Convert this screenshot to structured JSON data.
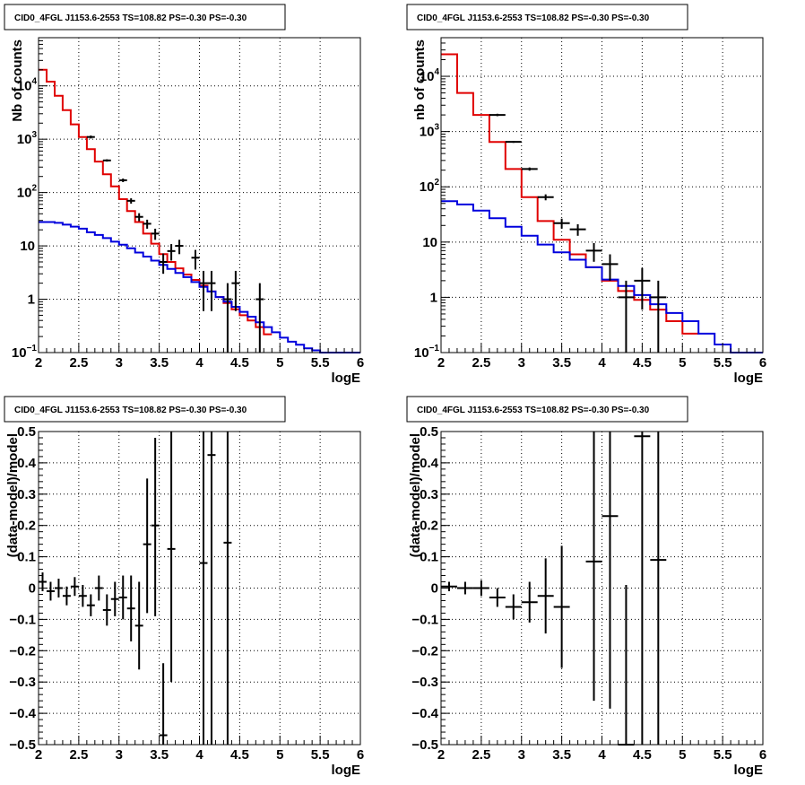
{
  "chart_data": [
    {
      "id": "p1",
      "type": "step-histogram",
      "title": "CID0_4FGL J1153.6-2553 TS=108.82 PS=-0.30 PS=-0.30",
      "xlabel": "logE",
      "ylabel": "Nb of counts",
      "xlim": [
        2,
        6
      ],
      "ylim": [
        0.1,
        80000
      ],
      "yscale": "log",
      "grid": true,
      "xticks": [
        "2",
        "2.5",
        "3",
        "3.5",
        "4",
        "4.5",
        "5",
        "5.5",
        "6"
      ],
      "yticks": [
        {
          "mant": "10",
          "exp": "−1",
          "v": 0.1
        },
        {
          "mant": "1",
          "exp": "",
          "v": 1
        },
        {
          "mant": "10",
          "exp": "",
          "v": 10
        },
        {
          "mant": "10",
          "exp": "2",
          "v": 100
        },
        {
          "mant": "10",
          "exp": "3",
          "v": 1000
        },
        {
          "mant": "10",
          "exp": "4",
          "v": 10000
        }
      ],
      "bin_edges": [
        2.0,
        2.1,
        2.2,
        2.3,
        2.4,
        2.5,
        2.6,
        2.7,
        2.8,
        2.9,
        3.0,
        3.1,
        3.2,
        3.3,
        3.4,
        3.5,
        3.6,
        3.7,
        3.8,
        3.9,
        4.0,
        4.1,
        4.2,
        4.3,
        4.4,
        4.5,
        4.6,
        4.7,
        4.8,
        4.9,
        5.0,
        5.1,
        5.2,
        5.3,
        5.4,
        5.5,
        5.6,
        5.7,
        5.8,
        5.9,
        6.0
      ],
      "series": [
        {
          "name": "",
          "color": "#e00000",
          "values": [
            20000,
            12000,
            6500,
            3500,
            1900,
            1100,
            650,
            380,
            220,
            130,
            75,
            45,
            28,
            17,
            11,
            7,
            5,
            3.8,
            2.9,
            2.3,
            1.8,
            1.4,
            1.1,
            0.85,
            0.65,
            0.5,
            0.4,
            0.3,
            0.22
          ]
        },
        {
          "name": "",
          "color": "#0000dd",
          "values": [
            28,
            28,
            27,
            25,
            23,
            21,
            18,
            16,
            14,
            12,
            10.5,
            9,
            7.5,
            6.3,
            5.3,
            4.4,
            3.7,
            3.1,
            2.6,
            2.1,
            1.7,
            1.4,
            1.1,
            0.9,
            0.72,
            0.58,
            0.47,
            0.37,
            0.3,
            0.24,
            0.19,
            0.16,
            0.14,
            0.12,
            0.11,
            0.1,
            0.1,
            0.1,
            0.1,
            0.1
          ]
        }
      ],
      "points": [
        {
          "x": 2.65,
          "y": 1100,
          "ylo": 1030,
          "yhi": 1170
        },
        {
          "x": 2.85,
          "y": 400,
          "ylo": 380,
          "yhi": 420
        },
        {
          "x": 3.05,
          "y": 170,
          "ylo": 157,
          "yhi": 183
        },
        {
          "x": 3.15,
          "y": 70,
          "ylo": 62,
          "yhi": 78
        },
        {
          "x": 3.25,
          "y": 35,
          "ylo": 29,
          "yhi": 41
        },
        {
          "x": 3.35,
          "y": 26,
          "ylo": 21,
          "yhi": 31
        },
        {
          "x": 3.45,
          "y": 17,
          "ylo": 13,
          "yhi": 21
        },
        {
          "x": 3.55,
          "y": 5,
          "ylo": 3,
          "yhi": 7.2
        },
        {
          "x": 3.65,
          "y": 8,
          "ylo": 5.3,
          "yhi": 10.8
        },
        {
          "x": 3.75,
          "y": 10,
          "ylo": 7,
          "yhi": 13
        },
        {
          "x": 3.95,
          "y": 6,
          "ylo": 3.6,
          "yhi": 8.4
        },
        {
          "x": 4.05,
          "y": 2,
          "ylo": 0.6,
          "yhi": 3.4
        },
        {
          "x": 4.15,
          "y": 2,
          "ylo": 0.6,
          "yhi": 3.4
        },
        {
          "x": 4.35,
          "y": 1,
          "ylo": 0.1,
          "yhi": 2
        },
        {
          "x": 4.45,
          "y": 2,
          "ylo": 0.6,
          "yhi": 3.4
        },
        {
          "x": 4.75,
          "y": 1,
          "ylo": 0.1,
          "yhi": 2
        }
      ],
      "xerr": 0.05
    },
    {
      "id": "p2",
      "type": "step-histogram",
      "title": "CID0_4FGL J1153.6-2553 TS=108.82 PS=-0.30 PS=-0.30",
      "xlabel": "logE",
      "ylabel": "nb of counts",
      "xlim": [
        2,
        6
      ],
      "ylim": [
        0.1,
        50000
      ],
      "yscale": "log",
      "grid": true,
      "xticks": [
        "2",
        "2.5",
        "3",
        "3.5",
        "4",
        "4.5",
        "5",
        "5.5",
        "6"
      ],
      "yticks": [
        {
          "mant": "10",
          "exp": "−1",
          "v": 0.1
        },
        {
          "mant": "1",
          "exp": "",
          "v": 1
        },
        {
          "mant": "10",
          "exp": "",
          "v": 10
        },
        {
          "mant": "10",
          "exp": "2",
          "v": 100
        },
        {
          "mant": "10",
          "exp": "3",
          "v": 1000
        },
        {
          "mant": "10",
          "exp": "4",
          "v": 10000
        }
      ],
      "bin_edges": [
        2.0,
        2.2,
        2.4,
        2.6,
        2.8,
        3.0,
        3.2,
        3.4,
        3.6,
        3.8,
        4.0,
        4.2,
        4.4,
        4.6,
        4.8,
        5.0,
        5.2,
        5.4,
        5.6,
        5.8,
        6.0
      ],
      "series": [
        {
          "name": "",
          "color": "#e00000",
          "values": [
            25000,
            5000,
            2000,
            650,
            210,
            65,
            24,
            11,
            6,
            3.5,
            2,
            1.3,
            0.9,
            0.6,
            0.37,
            0.22
          ]
        },
        {
          "name": "",
          "color": "#0000dd",
          "values": [
            55,
            48,
            37,
            27,
            19,
            13,
            9,
            6.5,
            4.8,
            3.5,
            2.1,
            1.6,
            1.1,
            0.75,
            0.52,
            0.37,
            0.22,
            0.14,
            0.1,
            0.1
          ]
        }
      ],
      "points": [
        {
          "x": 2.7,
          "y": 2000,
          "ylo": 1900,
          "yhi": 2100
        },
        {
          "x": 2.9,
          "y": 650,
          "ylo": 625,
          "yhi": 675
        },
        {
          "x": 3.1,
          "y": 210,
          "ylo": 196,
          "yhi": 224
        },
        {
          "x": 3.3,
          "y": 65,
          "ylo": 57,
          "yhi": 73
        },
        {
          "x": 3.5,
          "y": 22,
          "ylo": 17.5,
          "yhi": 26.5
        },
        {
          "x": 3.7,
          "y": 17,
          "ylo": 13,
          "yhi": 21
        },
        {
          "x": 3.9,
          "y": 7,
          "ylo": 4.4,
          "yhi": 9.6
        },
        {
          "x": 4.1,
          "y": 4,
          "ylo": 2,
          "yhi": 6
        },
        {
          "x": 4.3,
          "y": 1,
          "ylo": 0.1,
          "yhi": 2
        },
        {
          "x": 4.5,
          "y": 2,
          "ylo": 0.6,
          "yhi": 3.4
        },
        {
          "x": 4.7,
          "y": 1,
          "ylo": 0.1,
          "yhi": 2
        }
      ],
      "xerr": 0.1
    },
    {
      "id": "p3",
      "type": "scatter-errorbars",
      "title": "CID0_4FGL J1153.6-2553 TS=108.82 PS=-0.30 PS=-0.30",
      "xlabel": "logE",
      "ylabel": "(data-model)/model",
      "xlim": [
        2,
        6
      ],
      "ylim": [
        -0.5,
        0.5
      ],
      "yscale": "linear",
      "grid": true,
      "xticks": [
        "2",
        "2.5",
        "3",
        "3.5",
        "4",
        "4.5",
        "5",
        "5.5",
        "6"
      ],
      "yticks": [
        "−0.5",
        "−0.4",
        "−0.3",
        "−0.2",
        "−0.1",
        "0",
        "0.1",
        "0.2",
        "0.3",
        "0.4",
        "0.5"
      ],
      "points": [
        {
          "x": 2.05,
          "y": 0.02,
          "ylo": -0.01,
          "yhi": 0.05
        },
        {
          "x": 2.15,
          "y": -0.01,
          "ylo": -0.04,
          "yhi": 0.02
        },
        {
          "x": 2.25,
          "y": 0.0,
          "ylo": -0.03,
          "yhi": 0.03
        },
        {
          "x": 2.35,
          "y": -0.025,
          "ylo": -0.055,
          "yhi": 0.005
        },
        {
          "x": 2.45,
          "y": 0.005,
          "ylo": -0.025,
          "yhi": 0.035
        },
        {
          "x": 2.55,
          "y": -0.025,
          "ylo": -0.06,
          "yhi": 0.01
        },
        {
          "x": 2.65,
          "y": -0.055,
          "ylo": -0.09,
          "yhi": -0.02
        },
        {
          "x": 2.75,
          "y": 0.0,
          "ylo": -0.04,
          "yhi": 0.04
        },
        {
          "x": 2.85,
          "y": -0.07,
          "ylo": -0.12,
          "yhi": -0.02
        },
        {
          "x": 2.95,
          "y": -0.035,
          "ylo": -0.09,
          "yhi": 0.02
        },
        {
          "x": 3.05,
          "y": -0.03,
          "ylo": -0.1,
          "yhi": 0.04
        },
        {
          "x": 3.15,
          "y": -0.065,
          "ylo": -0.17,
          "yhi": 0.04
        },
        {
          "x": 3.25,
          "y": -0.12,
          "ylo": -0.26,
          "yhi": 0.02
        },
        {
          "x": 3.35,
          "y": 0.14,
          "ylo": -0.08,
          "yhi": 0.35
        },
        {
          "x": 3.45,
          "y": 0.2,
          "ylo": -0.09,
          "yhi": 0.48
        },
        {
          "x": 3.55,
          "y": -0.47,
          "ylo": -0.5,
          "yhi": -0.24
        },
        {
          "x": 3.65,
          "y": 0.125,
          "ylo": -0.3,
          "yhi": 0.5
        },
        {
          "x": 4.05,
          "y": 0.08,
          "ylo": -0.5,
          "yhi": 0.5
        },
        {
          "x": 4.15,
          "y": 0.425,
          "ylo": -0.5,
          "yhi": 0.5
        },
        {
          "x": 4.35,
          "y": 0.145,
          "ylo": -0.5,
          "yhi": 0.5
        }
      ],
      "xerr": 0.05
    },
    {
      "id": "p4",
      "type": "scatter-errorbars",
      "title": "CID0_4FGL J1153.6-2553 TS=108.82 PS=-0.30 PS=-0.30",
      "xlabel": "logE",
      "ylabel": "(data-model)/model",
      "xlim": [
        2,
        6
      ],
      "ylim": [
        -0.5,
        0.5
      ],
      "yscale": "linear",
      "grid": true,
      "xticks": [
        "2",
        "2.5",
        "3",
        "3.5",
        "4",
        "4.5",
        "5",
        "5.5",
        "6"
      ],
      "yticks": [
        "−0.5",
        "−0.4",
        "−0.3",
        "−0.2",
        "−0.1",
        "0",
        "0.1",
        "0.2",
        "0.3",
        "0.4",
        "0.5"
      ],
      "points": [
        {
          "x": 2.1,
          "y": 0.005,
          "ylo": -0.01,
          "yhi": 0.02
        },
        {
          "x": 2.3,
          "y": 0.0,
          "ylo": -0.02,
          "yhi": 0.02
        },
        {
          "x": 2.5,
          "y": 0.0,
          "ylo": -0.025,
          "yhi": 0.025
        },
        {
          "x": 2.7,
          "y": -0.03,
          "ylo": -0.06,
          "yhi": 0.0
        },
        {
          "x": 2.9,
          "y": -0.06,
          "ylo": -0.1,
          "yhi": -0.02
        },
        {
          "x": 3.1,
          "y": -0.045,
          "ylo": -0.11,
          "yhi": 0.02
        },
        {
          "x": 3.3,
          "y": -0.025,
          "ylo": -0.145,
          "yhi": 0.095
        },
        {
          "x": 3.5,
          "y": -0.06,
          "ylo": -0.255,
          "yhi": 0.135
        },
        {
          "x": 3.9,
          "y": 0.085,
          "ylo": -0.36,
          "yhi": 0.5
        },
        {
          "x": 4.1,
          "y": 0.23,
          "ylo": -0.385,
          "yhi": 0.5
        },
        {
          "x": 4.3,
          "y": -0.5,
          "ylo": -0.5,
          "yhi": 0.01
        },
        {
          "x": 4.5,
          "y": 0.485,
          "ylo": -0.5,
          "yhi": 0.5
        },
        {
          "x": 4.7,
          "y": 0.09,
          "ylo": -0.5,
          "yhi": 0.5
        }
      ],
      "xerr": 0.1
    }
  ]
}
